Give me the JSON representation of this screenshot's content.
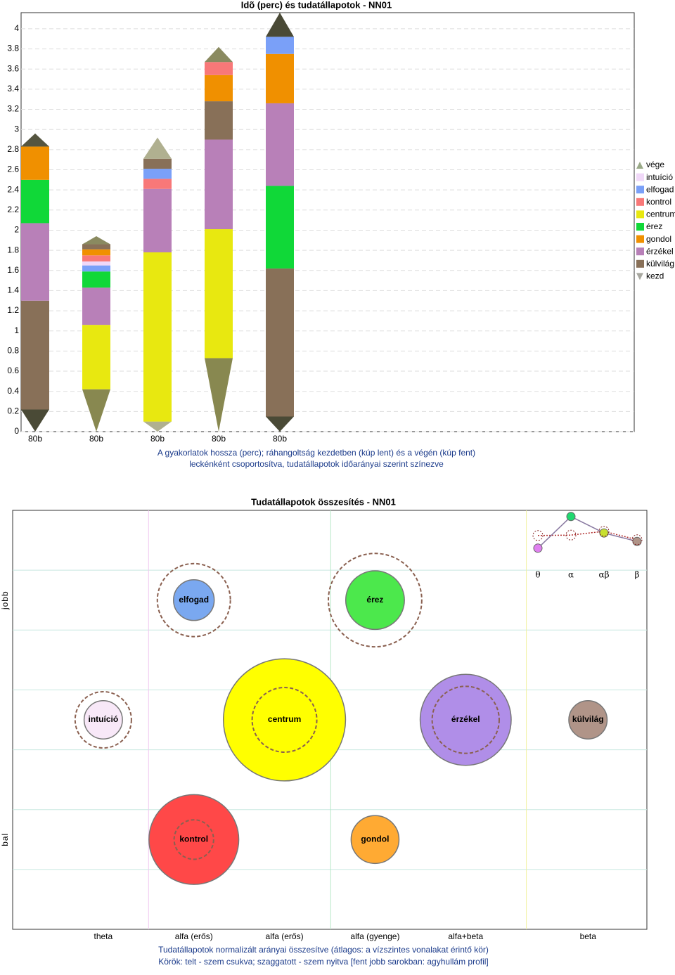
{
  "chart_data": [
    {
      "type": "cone-stack",
      "title": "Idõ (perc) és tudatállapotok - NN01",
      "caption": [
        "A gyakorlatok hossza (perc); ráhangoltság kezdetben (kúp lent) és a végén (kúp fent)",
        "leckénként csoportosítva, tudatállapotok időarányai szerint színezve"
      ],
      "categories": [
        "80b",
        "80b",
        "80b",
        "80b",
        "80b"
      ],
      "bars": [
        [
          {
            "name": "kezd",
            "value": 0.22,
            "color": "#4a4a36"
          },
          {
            "name": "külvilág",
            "value": 1.08
          },
          {
            "name": "érzékel",
            "value": 0.77
          },
          {
            "name": "érez",
            "value": 0.43
          },
          {
            "name": "gondol",
            "value": 0.33
          },
          {
            "name": "vége",
            "value": 0.13,
            "color": "#555540"
          }
        ],
        [
          {
            "name": "kezd",
            "value": 0.42,
            "color": "#888850"
          },
          {
            "name": "centrum",
            "value": 0.64
          },
          {
            "name": "érzékel",
            "value": 0.37
          },
          {
            "name": "érez",
            "value": 0.16
          },
          {
            "name": "elfogad",
            "value": 0.06
          },
          {
            "name": "intuíció",
            "value": 0.04
          },
          {
            "name": "kontrol",
            "value": 0.06
          },
          {
            "name": "gondol",
            "value": 0.06
          },
          {
            "name": "külvilág",
            "value": 0.05
          },
          {
            "name": "vége",
            "value": 0.08,
            "color": "#8a8a60"
          }
        ],
        [
          {
            "name": "kezd",
            "value": 0.1,
            "color": "#b0b090"
          },
          {
            "name": "centrum",
            "value": 1.68
          },
          {
            "name": "érzékel",
            "value": 0.63
          },
          {
            "name": "kontrol",
            "value": 0.1
          },
          {
            "name": "elfogad",
            "value": 0.1
          },
          {
            "name": "külvilág",
            "value": 0.1
          },
          {
            "name": "vége",
            "value": 0.21,
            "color": "#b0b090"
          }
        ],
        [
          {
            "name": "kezd",
            "value": 0.73,
            "color": "#888850"
          },
          {
            "name": "centrum",
            "value": 1.28
          },
          {
            "name": "érzékel",
            "value": 0.89
          },
          {
            "name": "külvilág",
            "value": 0.38
          },
          {
            "name": "gondol",
            "value": 0.26
          },
          {
            "name": "kontrol",
            "value": 0.13
          },
          {
            "name": "vége",
            "value": 0.15,
            "color": "#8a8a60"
          }
        ],
        [
          {
            "name": "kezd",
            "value": 0.15,
            "color": "#4a4a36"
          },
          {
            "name": "külvilág",
            "value": 1.47
          },
          {
            "name": "érez",
            "value": 0.82
          },
          {
            "name": "érzékel",
            "value": 0.82
          },
          {
            "name": "gondol",
            "value": 0.49
          },
          {
            "name": "elfogad",
            "value": 0.17
          },
          {
            "name": "vége",
            "value": 0.24,
            "color": "#4a4a36"
          }
        ]
      ],
      "legend": [
        {
          "name": "vége",
          "color": "#9aaa88"
        },
        {
          "name": "intuíció",
          "color": "#f0d8f8"
        },
        {
          "name": "elfogad",
          "color": "#7aa0f8"
        },
        {
          "name": "kontrol",
          "color": "#f87878"
        },
        {
          "name": "centrum",
          "color": "#e8e810"
        },
        {
          "name": "érez",
          "color": "#10d838"
        },
        {
          "name": "gondol",
          "color": "#f09000"
        },
        {
          "name": "érzékel",
          "color": "#b880b8"
        },
        {
          "name": "külvilág",
          "color": "#887058"
        },
        {
          "name": "kezd",
          "color": "#a8a8a0"
        }
      ],
      "ylim": [
        0,
        4.16
      ],
      "yticks": [
        0,
        0.2,
        0.4,
        0.6,
        0.8,
        1,
        1.2,
        1.4,
        1.6,
        1.8,
        2,
        2.2,
        2.4,
        2.6,
        2.8,
        3,
        3.2,
        3.4,
        3.6,
        3.8,
        4
      ],
      "grid": true
    },
    {
      "type": "bubble",
      "title": "Tudatállapotok összesítés - NN01",
      "caption": [
        "Tudatállapotok normalizált arányai összesítve (átlagos: a vízszintes vonalakat érintő kör)",
        "Körök: telt - szem csukva; szaggatott - szem nyitva [fent jobb sarokban: agyhullám profil]"
      ],
      "xlim": [
        0,
        7
      ],
      "ylim": [
        0,
        7
      ],
      "xticks": [
        {
          "value": 1,
          "label": "theta"
        },
        {
          "value": 2,
          "label": "alfa (erős)"
        },
        {
          "value": 3,
          "label": "alfa (erős)"
        },
        {
          "value": 4,
          "label": "alfa (gyenge)"
        },
        {
          "value": 5,
          "label": "alfa+beta"
        },
        {
          "value": 6.35,
          "label": "beta"
        }
      ],
      "yticks": [
        {
          "value": 5.5,
          "label": "jobb"
        },
        {
          "value": 1.5,
          "label": "bal"
        }
      ],
      "ygrid": [
        1,
        2,
        3,
        4,
        5,
        6
      ],
      "xlines": [
        {
          "value": 1.5,
          "color": "#f0c8f0"
        },
        {
          "value": 3.51,
          "color": "#b8e8c8"
        },
        {
          "value": 5.67,
          "color": "#f0f0a0"
        }
      ],
      "bubbles": [
        {
          "label": "elfogad",
          "x": 2,
          "y": 5.5,
          "size": 0.34,
          "open_size": 0.61,
          "color": "#7aa8f0"
        },
        {
          "label": "érez",
          "x": 4,
          "y": 5.5,
          "size": 0.49,
          "open_size": 0.78,
          "color": "#4ce84c"
        },
        {
          "label": "intuíció",
          "x": 1,
          "y": 3.5,
          "size": 0.32,
          "open_size": 0.47,
          "color": "#f8e8f8"
        },
        {
          "label": "centrum",
          "x": 3,
          "y": 3.5,
          "size": 1.02,
          "open_size": 0.54,
          "color": "#ffff00"
        },
        {
          "label": "érzékel",
          "x": 5,
          "y": 3.5,
          "size": 0.76,
          "open_size": 0.56,
          "color": "#b08ee8"
        },
        {
          "label": "külvilág",
          "x": 6.35,
          "y": 3.5,
          "size": 0.32,
          "open_size": null,
          "color": "#b09488"
        },
        {
          "label": "kontrol",
          "x": 2,
          "y": 1.5,
          "size": 0.75,
          "open_size": 0.33,
          "color": "#ff4848"
        },
        {
          "label": "gondol",
          "x": 4,
          "y": 1.5,
          "size": 0.4,
          "open_size": null,
          "color": "#ffaa33"
        }
      ],
      "profile": {
        "categories": [
          "θ",
          "α",
          "αβ",
          "β"
        ],
        "ylim": [
          0,
          1
        ],
        "closed": [
          0.17,
          0.92,
          0.53,
          0.33
        ],
        "open": [
          0.47,
          0.48,
          0.57,
          0.37
        ],
        "colors": [
          "#e080f0",
          "#20d870",
          "#c8e030",
          "#b09488"
        ]
      }
    }
  ]
}
